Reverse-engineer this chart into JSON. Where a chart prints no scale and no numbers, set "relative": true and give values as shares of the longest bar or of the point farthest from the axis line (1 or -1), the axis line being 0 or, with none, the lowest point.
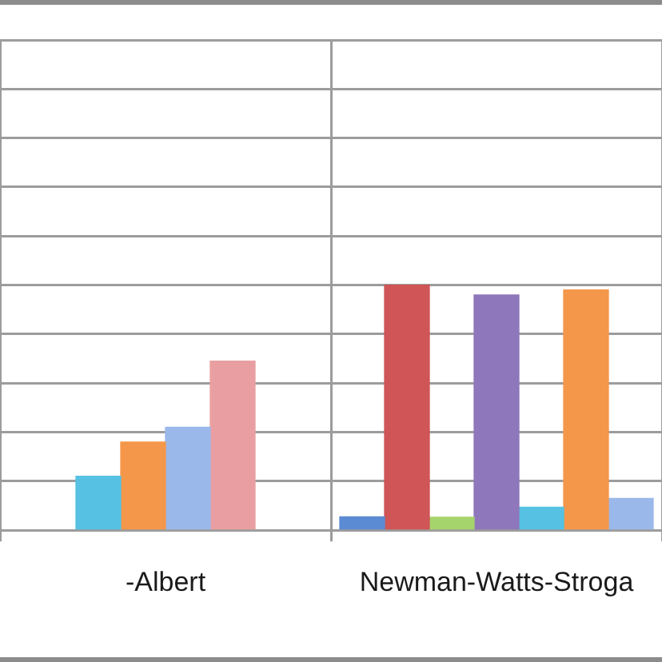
{
  "chart_data": {
    "type": "bar",
    "relative": true,
    "categories": [
      "-Albert",
      "Newman-Watts-Stroga"
    ],
    "series": [
      {
        "color": "#5b8bd3",
        "values": [
          null,
          0.055
        ]
      },
      {
        "color": "#cf5557",
        "values": [
          null,
          1
        ]
      },
      {
        "color": "#a6d46c",
        "values": [
          null,
          0.053
        ]
      },
      {
        "color": "#8f77bb",
        "values": [
          null,
          0.96
        ]
      },
      {
        "color": "#56c1e2",
        "values": [
          0.22,
          0.094
        ]
      },
      {
        "color": "#f4974a",
        "values": [
          0.36,
          0.98
        ]
      },
      {
        "color": "#9bb8ea",
        "values": [
          0.42,
          0.13
        ]
      },
      {
        "color": "#e99fa1",
        "values": [
          0.69,
          null
        ]
      }
    ],
    "grid": true
  }
}
